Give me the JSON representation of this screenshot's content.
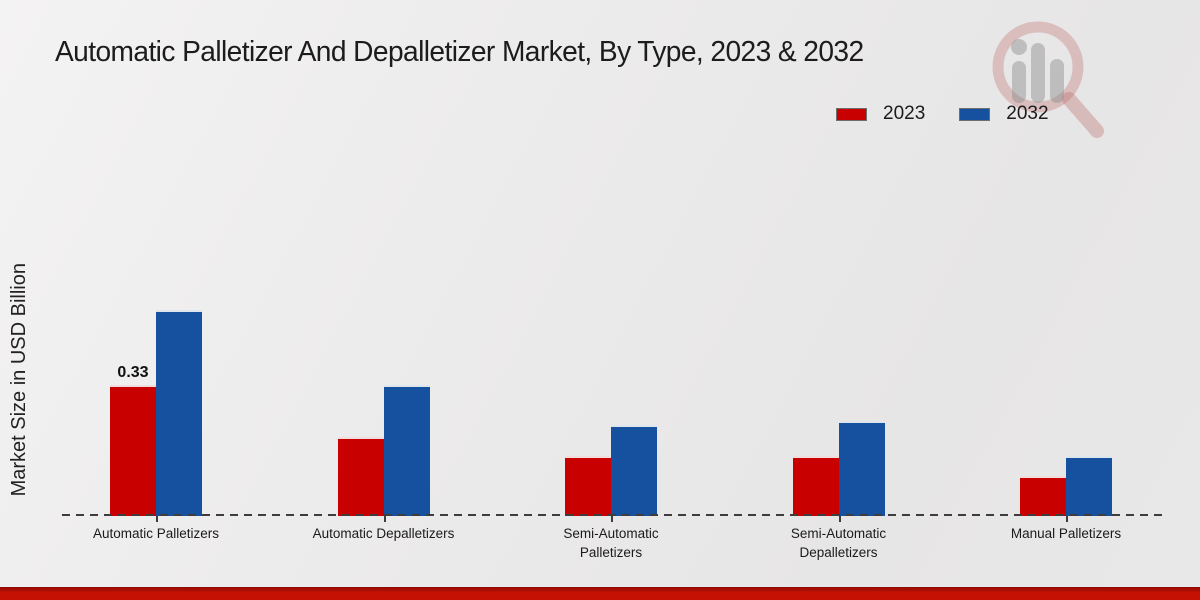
{
  "title": "Automatic Palletizer And Depalletizer Market, By Type, 2023 & 2032",
  "chart_data": {
    "type": "bar",
    "title": "Automatic Palletizer And Depalletizer Market, By Type, 2023 & 2032",
    "ylabel": "Market Size in USD Billion",
    "xlabel": "",
    "categories": [
      "Automatic Palletizers",
      "Automatic Depalletizers",
      "Semi-Automatic Palletizers",
      "Semi-Automatic Depalletizers",
      "Manual Palletizers"
    ],
    "series": [
      {
        "name": "2023",
        "color": "#c80000",
        "values": [
          0.33,
          0.2,
          0.15,
          0.15,
          0.1
        ],
        "labels": [
          "0.33",
          "",
          "",
          "",
          ""
        ]
      },
      {
        "name": "2032",
        "color": "#16519f",
        "values": [
          0.52,
          0.33,
          0.23,
          0.24,
          0.15
        ],
        "labels": [
          "",
          "",
          "",
          "",
          ""
        ]
      }
    ],
    "ylim": [
      0,
      0.59
    ],
    "grid": false,
    "legend_position": "top-right",
    "baseline_style": "dashed",
    "value_axis_ticks_visible": false
  },
  "colors": {
    "series_2023": "#c80000",
    "series_2032": "#16519f",
    "footer_stripe": "#c41104",
    "baseline": "#3d3d3d"
  },
  "watermark": {
    "name": "magnifier-bar-chart-logo"
  }
}
